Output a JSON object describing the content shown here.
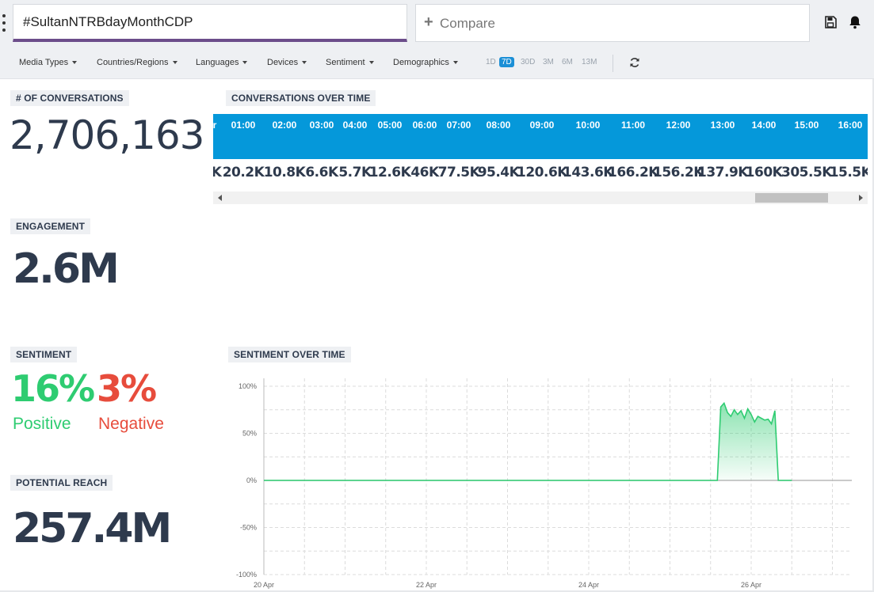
{
  "query": {
    "value": "#SultanNTRBdayMonthCDP"
  },
  "compare": {
    "plus": "+",
    "label": "Compare"
  },
  "icons": {
    "save": "floppy-disk-icon",
    "bell": "bell-icon",
    "refresh": "refresh-icon",
    "menu": "kebab-menu-icon"
  },
  "filters": [
    "Media Types",
    "Countries/Regions",
    "Languages",
    "Devices",
    "Sentiment",
    "Demographics"
  ],
  "ranges": [
    {
      "label": "1D",
      "active": false
    },
    {
      "label": "7D",
      "active": true
    },
    {
      "label": "30D",
      "active": false
    },
    {
      "label": "3M",
      "active": false
    },
    {
      "label": "6M",
      "active": false
    },
    {
      "label": "13M",
      "active": false
    }
  ],
  "conversations": {
    "label": "# OF CONVERSATIONS",
    "value": "2,706,163"
  },
  "conversations_over_time": {
    "label": "CONVERSATIONS OVER TIME",
    "partial_first_hour": "r",
    "partial_first_count": "K",
    "hours": [
      "01:00",
      "02:00",
      "03:00",
      "04:00",
      "05:00",
      "06:00",
      "07:00",
      "08:00",
      "09:00",
      "10:00",
      "11:00",
      "12:00",
      "13:00",
      "14:00",
      "15:00",
      "16:00"
    ],
    "counts": [
      "20.2K",
      "10.8K",
      "6.6K",
      "5.7K",
      "12.6K",
      "46K",
      "77.5K",
      "95.4K",
      "120.6K",
      "143.6K",
      "166.2K",
      "156.2K",
      "137.9K",
      "160K",
      "305.5K",
      "15.5K"
    ]
  },
  "engagement": {
    "label": "ENGAGEMENT",
    "value": "2.6M"
  },
  "sentiment": {
    "label": "SENTIMENT",
    "positive_value": "16%",
    "positive_label": "Positive",
    "negative_value": "3%",
    "negative_label": "Negative"
  },
  "potential_reach": {
    "label": "POTENTIAL REACH",
    "value": "257.4M"
  },
  "sentiment_over_time": {
    "label": "SENTIMENT OVER TIME"
  },
  "colors": {
    "accent": "#0598da",
    "query_underline": "#6c4d8a",
    "positive": "#2ecc71",
    "negative": "#e74c3c",
    "text": "#2e3a4d"
  },
  "chart_data": {
    "type": "area",
    "title": "SENTIMENT OVER TIME",
    "xlabel": "",
    "ylabel": "",
    "ylim": [
      -100,
      100
    ],
    "y_ticks": [
      "100%",
      "50%",
      "0%",
      "-50%",
      "-100%"
    ],
    "x_ticks": [
      "20 Apr",
      "22 Apr",
      "24 Apr",
      "26 Apr"
    ],
    "grid": true,
    "series": [
      {
        "color": "#2ecc71",
        "points": [
          [
            "20 Apr",
            0
          ],
          [
            "21 Apr",
            0
          ],
          [
            "22 Apr",
            0
          ],
          [
            "23 Apr",
            0
          ],
          [
            "24 Apr",
            0
          ],
          [
            "25 Apr",
            0
          ],
          [
            "25 Apr 14:00",
            0
          ],
          [
            "25 Apr 15:00",
            78
          ],
          [
            "25 Apr 16:00",
            82
          ],
          [
            "25 Apr 17:00",
            72
          ],
          [
            "25 Apr 18:00",
            68
          ],
          [
            "25 Apr 19:00",
            75
          ],
          [
            "25 Apr 20:00",
            70
          ],
          [
            "25 Apr 21:00",
            74
          ],
          [
            "25 Apr 22:00",
            66
          ],
          [
            "25 Apr 23:00",
            76
          ],
          [
            "26 Apr 00:00",
            70
          ],
          [
            "26 Apr 01:00",
            62
          ],
          [
            "26 Apr 02:00",
            68
          ],
          [
            "26 Apr 03:00",
            66
          ],
          [
            "26 Apr 04:00",
            64
          ],
          [
            "26 Apr 05:00",
            65
          ],
          [
            "26 Apr 06:00",
            60
          ],
          [
            "26 Apr 07:00",
            74
          ],
          [
            "26 Apr 08:00",
            0
          ],
          [
            "26 Apr 12:00",
            0
          ]
        ]
      }
    ]
  }
}
